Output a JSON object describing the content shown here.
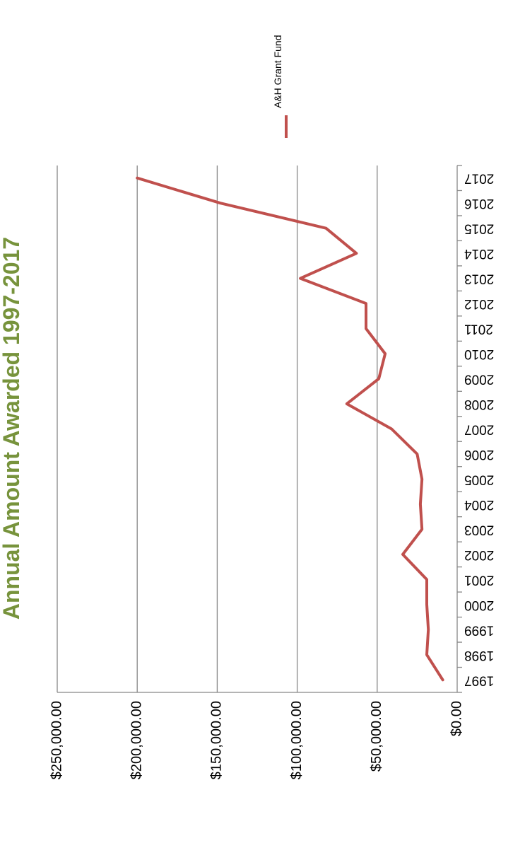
{
  "chart_data": {
    "type": "line",
    "title": "Annual Amount Awarded 1997-2017",
    "xlabel": "",
    "ylabel": "",
    "categories": [
      "1997",
      "1998",
      "1999",
      "2000",
      "2001",
      "2002",
      "2003",
      "2004",
      "2005",
      "2006",
      "2007",
      "2008",
      "2009",
      "2010",
      "2011",
      "2012",
      "2013",
      "2014",
      "2015",
      "2016",
      "2017"
    ],
    "series": [
      {
        "name": "A&H Grant Fund",
        "color": "#c0504d",
        "values": [
          9000,
          19000,
          18000,
          19000,
          19000,
          34000,
          22000,
          23000,
          22000,
          25000,
          41000,
          69000,
          49000,
          45000,
          57000,
          57000,
          98000,
          63000,
          82000,
          148000,
          200000
        ]
      }
    ],
    "y_ticks": [
      "$0.00",
      "$50,000.00",
      "$100,000.00",
      "$150,000.00",
      "$200,000.00",
      "$250,000.00"
    ],
    "ylim": [
      0,
      250000
    ],
    "grid": true,
    "legend_position": "top",
    "orientation": "rotated 180 degrees",
    "colors": {
      "title": "#77933c",
      "gridline": "#878787",
      "axis": "#878787"
    }
  }
}
